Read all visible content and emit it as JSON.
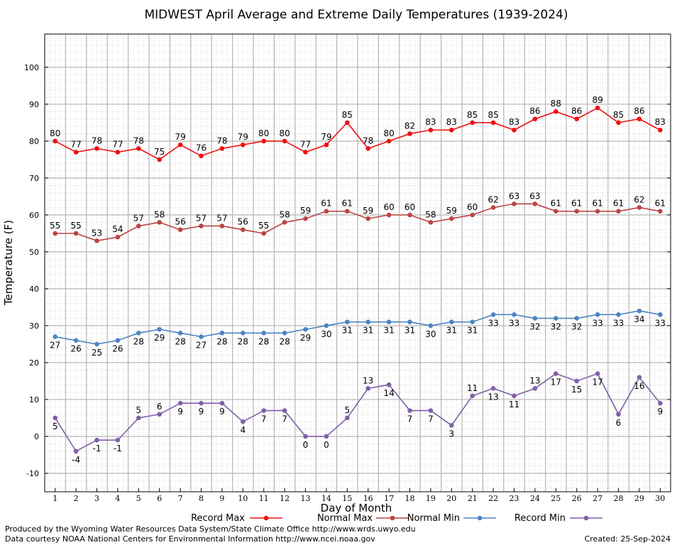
{
  "chart_data": {
    "type": "line",
    "title": "MIDWEST April Average and Extreme Daily Temperatures (1939-2024)",
    "xlabel": "Day of Month",
    "ylabel": "Temperature (F)",
    "xlim": [
      0.5,
      30.5
    ],
    "ylim": [
      -15,
      109
    ],
    "yticks": [
      -10,
      0,
      10,
      20,
      30,
      40,
      50,
      60,
      70,
      80,
      90,
      100
    ],
    "categories": [
      1,
      2,
      3,
      4,
      5,
      6,
      7,
      8,
      9,
      10,
      11,
      12,
      13,
      14,
      15,
      16,
      17,
      18,
      19,
      20,
      21,
      22,
      23,
      24,
      25,
      26,
      27,
      28,
      29,
      30
    ],
    "grid": true,
    "legend_position": "bottom",
    "series": [
      {
        "name": "Record Max",
        "color": "#ee1111",
        "values": [
          80,
          77,
          78,
          77,
          78,
          75,
          79,
          76,
          78,
          79,
          80,
          80,
          77,
          79,
          85,
          78,
          80,
          82,
          83,
          83,
          85,
          85,
          83,
          86,
          88,
          86,
          89,
          85,
          86,
          83
        ]
      },
      {
        "name": "Normal Max",
        "color": "#bb4444",
        "values": [
          55,
          55,
          53,
          54,
          57,
          58,
          56,
          57,
          57,
          56,
          55,
          58,
          59,
          61,
          61,
          59,
          60,
          60,
          58,
          59,
          60,
          62,
          63,
          63,
          61,
          61,
          61,
          61,
          62,
          61
        ]
      },
      {
        "name": "Normal Min",
        "color": "#4d84c0",
        "values": [
          27,
          26,
          25,
          26,
          28,
          29,
          28,
          27,
          28,
          28,
          28,
          28,
          29,
          30,
          31,
          31,
          31,
          31,
          30,
          31,
          31,
          33,
          33,
          32,
          32,
          32,
          33,
          33,
          34,
          33
        ]
      },
      {
        "name": "Record Min",
        "color": "#8060a8",
        "values": [
          5,
          -4,
          -1,
          -1,
          5,
          6,
          9,
          9,
          9,
          4,
          7,
          7,
          0,
          0,
          5,
          13,
          14,
          7,
          7,
          3,
          11,
          13,
          11,
          13,
          17,
          15,
          17,
          6,
          16,
          9
        ]
      }
    ]
  },
  "footer": {
    "credit_line1": "Produced by the Wyoming Water Resources Data System/State Climate Office http://www.wrds.uwyo.edu",
    "credit_line2": "Data courtesy NOAA National Centers for Environmental Information http://www.ncei.noaa.gov",
    "created": "Created:  25-Sep-2024"
  }
}
